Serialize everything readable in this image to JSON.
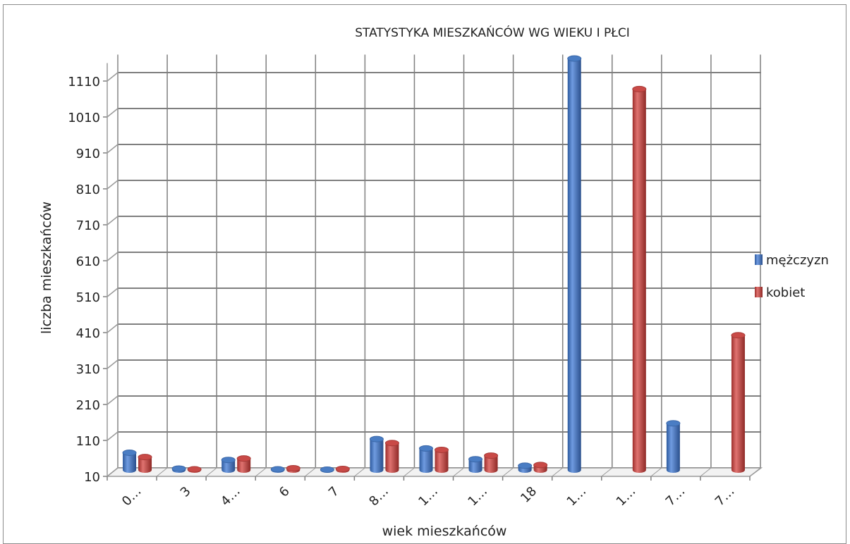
{
  "chart_data": {
    "type": "bar",
    "title": "STATYSTYKA MIESZKAŃCÓW WG WIEKU I PŁCI",
    "xlabel": "wiek mieszkańców",
    "ylabel": "liczba mieszkańców",
    "categories": [
      "0…",
      "3",
      "4…",
      "6",
      "7",
      "8…",
      "1…",
      "1…",
      "18",
      "1…",
      "1…",
      "7…",
      "7…"
    ],
    "yticks": [
      "10",
      "110",
      "210",
      "310",
      "410",
      "510",
      "610",
      "710",
      "810",
      "910",
      "1010",
      "1110"
    ],
    "ylim": [
      10,
      1160
    ],
    "grid": true,
    "legend_position": "right",
    "style": "3d-cylinder",
    "series": [
      {
        "name": "mężczyzn",
        "color": "#4a7dc4",
        "values": [
          58,
          14,
          38,
          12,
          11,
          96,
          70,
          40,
          22,
          1155,
          null,
          140,
          null
        ]
      },
      {
        "name": "kobiet",
        "color": "#c94a47",
        "values": [
          46,
          12,
          42,
          15,
          13,
          85,
          66,
          50,
          24,
          null,
          1070,
          null,
          385
        ]
      }
    ]
  }
}
